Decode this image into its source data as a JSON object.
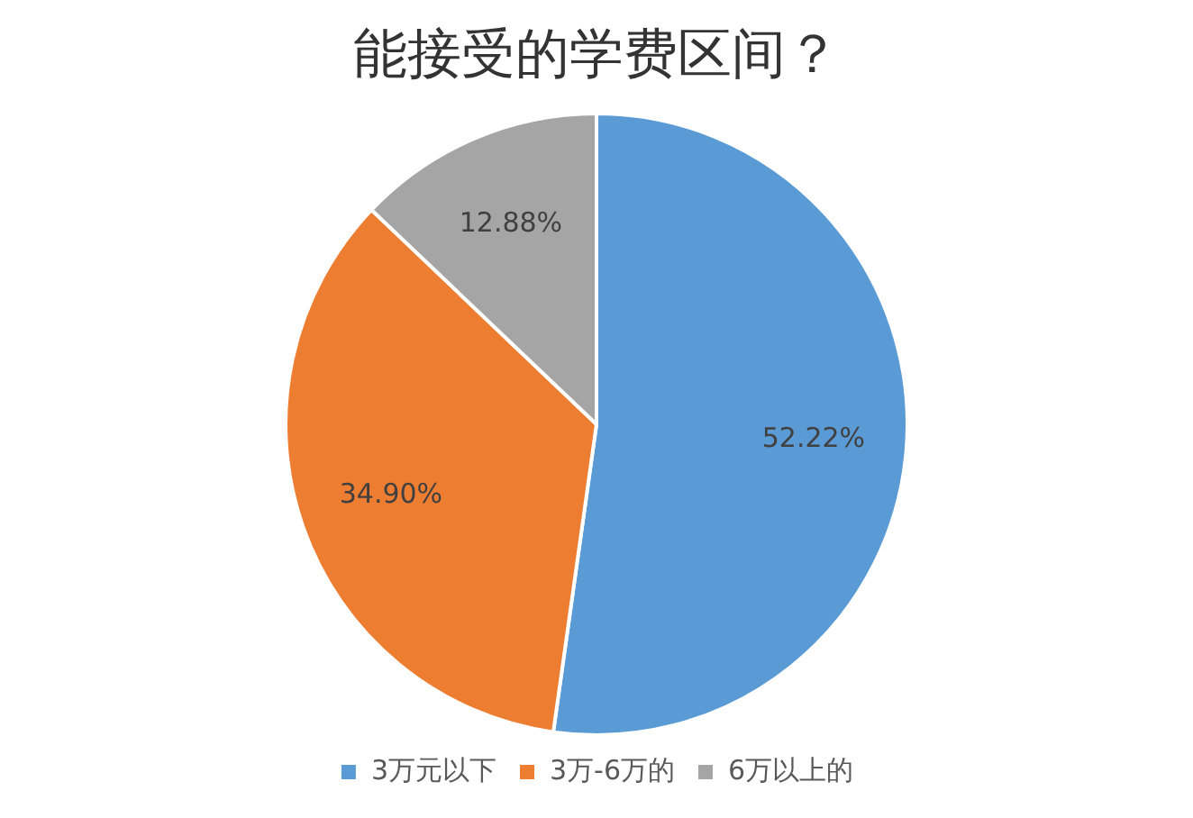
{
  "chart_data": {
    "type": "pie",
    "title": "能接受的学费区间？",
    "categories": [
      "3万元以下",
      "3万-6万的",
      "6万以上的"
    ],
    "values": [
      52.22,
      34.9,
      12.88
    ],
    "value_labels": [
      "52.22%",
      "34.90%",
      "12.88%"
    ],
    "colors": [
      "#5b9bd5",
      "#ed7d31",
      "#a5a5a5"
    ],
    "legend": "bottom"
  }
}
